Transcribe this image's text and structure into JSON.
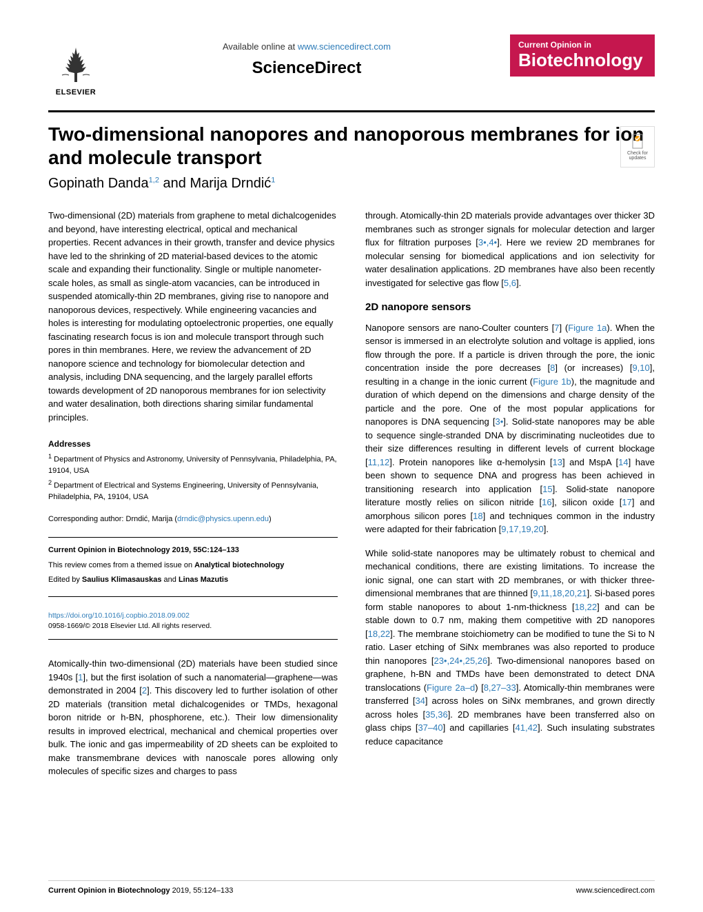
{
  "header": {
    "publisher": "ELSEVIER",
    "available_text": "Available online at ",
    "sciencedirect_url": "www.sciencedirect.com",
    "sciencedirect_logo": "ScienceDirect",
    "journal_top": "Current Opinion in",
    "journal_bottom": "Biotechnology"
  },
  "title": "Two-dimensional nanopores and nanoporous membranes for ion and molecule transport",
  "authors": {
    "author1": "Gopinath Danda",
    "author1_sup": "1,2",
    "author2": "Marija Drndić",
    "author2_sup": "1",
    "conjunction": " and "
  },
  "check_updates": "Check for updates",
  "abstract": "Two-dimensional (2D) materials from graphene to metal dichalcogenides and beyond, have interesting electrical, optical and mechanical properties. Recent advances in their growth, transfer and device physics have led to the shrinking of 2D material-based devices to the atomic scale and expanding their functionality. Single or multiple nanometer-scale holes, as small as single-atom vacancies, can be introduced in suspended atomically-thin 2D membranes, giving rise to nanopore and nanoporous devices, respectively. While engineering vacancies and holes is interesting for modulating optoelectronic properties, one equally fascinating research focus is ion and molecule transport through such pores in thin membranes. Here, we review the advancement of 2D nanopore science and technology for biomolecular detection and analysis, including DNA sequencing, and the largely parallel efforts towards development of 2D nanoporous membranes for ion selectivity and water desalination, both directions sharing similar fundamental principles.",
  "addresses": {
    "heading": "Addresses",
    "addr1": "Department of Physics and Astronomy, University of Pennsylvania, Philadelphia, PA, 19104, USA",
    "addr1_sup": "1",
    "addr2": "Department of Electrical and Systems Engineering, University of Pennsylvania, Philadelphia, PA, 19104, USA",
    "addr2_sup": "2"
  },
  "corresponding": {
    "label": "Corresponding author: Drndić, Marija (",
    "email": "drndic@physics.upenn.edu",
    "close": ")"
  },
  "review_box": {
    "citation": "Current Opinion in Biotechnology 2019, 55C:124–133",
    "themed": "This review comes from a themed issue on ",
    "themed_bold": "Analytical biotechnology",
    "edited_by": "Edited by ",
    "editor1": "Saulius Klimasauskas",
    "editor_and": " and ",
    "editor2": "Linas Mazutis"
  },
  "doi": {
    "url": "https://doi.org/10.1016/j.copbio.2018.09.002",
    "copyright": "0958-1669/© 2018 Elsevier Ltd. All rights reserved."
  },
  "intro_para": "Atomically-thin two-dimensional (2D) materials have been studied since 1940s [1], but the first isolation of such a nanomaterial—graphene—was demonstrated in 2004 [2]. This discovery led to further isolation of other 2D materials (transition metal dichalcogenides or TMDs, hexagonal boron nitride or h-BN, phosphorene, etc.). Their low dimensionality results in improved electrical, mechanical and chemical properties over bulk. The ionic and gas impermeability of 2D sheets can be exploited to make transmembrane devices with nanoscale pores allowing only molecules of specific sizes and charges to pass",
  "right_col": {
    "para1": "through. Atomically-thin 2D materials provide advantages over thicker 3D membranes such as stronger signals for molecular detection and larger flux for filtration purposes [3•,4•]. Here we review 2D membranes for molecular sensing for biomedical applications and ion selectivity for water desalination applications. 2D membranes have also been recently investigated for selective gas flow [5,6].",
    "section_heading": "2D nanopore sensors",
    "para2": "Nanopore sensors are nano-Coulter counters [7] (Figure 1a). When the sensor is immersed in an electrolyte solution and voltage is applied, ions flow through the pore. If a particle is driven through the pore, the ionic concentration inside the pore decreases [8] (or increases) [9,10], resulting in a change in the ionic current (Figure 1b), the magnitude and duration of which depend on the dimensions and charge density of the particle and the pore. One of the most popular applications for nanopores is DNA sequencing [3•]. Solid-state nanopores may be able to sequence single-stranded DNA by discriminating nucleotides due to their size differences resulting in different levels of current blockage [11,12]. Protein nanopores like α-hemolysin [13] and MspA [14] have been shown to sequence DNA and progress has been achieved in transitioning research into application [15]. Solid-state nanopore literature mostly relies on silicon nitride [16], silicon oxide [17] and amorphous silicon pores [18] and techniques common in the industry were adapted for their fabrication [9,17,19,20].",
    "para3": "While solid-state nanopores may be ultimately robust to chemical and mechanical conditions, there are existing limitations. To increase the ionic signal, one can start with 2D membranes, or with thicker three-dimensional membranes that are thinned [9,11,18,20,21]. Si-based pores form stable nanopores to about 1-nm-thickness [18,22] and can be stable down to 0.7 nm, making them competitive with 2D nanopores [18,22]. The membrane stoichiometry can be modified to tune the Si to N ratio. Laser etching of SiNx membranes was also reported to produce thin nanopores [23•,24•,25,26]. Two-dimensional nanopores based on graphene, h-BN and TMDs have been demonstrated to detect DNA translocations (Figure 2a–d) [8,27–33]. Atomically-thin membranes were transferred [34] across holes on SiNx membranes, and grown directly across holes [35,36]. 2D membranes have been transferred also on glass chips [37–40] and capillaries [41,42]. Such insulating substrates reduce capacitance"
  },
  "footer": {
    "left_bold": "Current Opinion in Biotechnology",
    "left_rest": " 2019, 55:124–133",
    "right": "www.sciencedirect.com"
  },
  "colors": {
    "link": "#2e7cb8",
    "journal_bg": "#c5174e",
    "check_orange": "#f39c12"
  }
}
